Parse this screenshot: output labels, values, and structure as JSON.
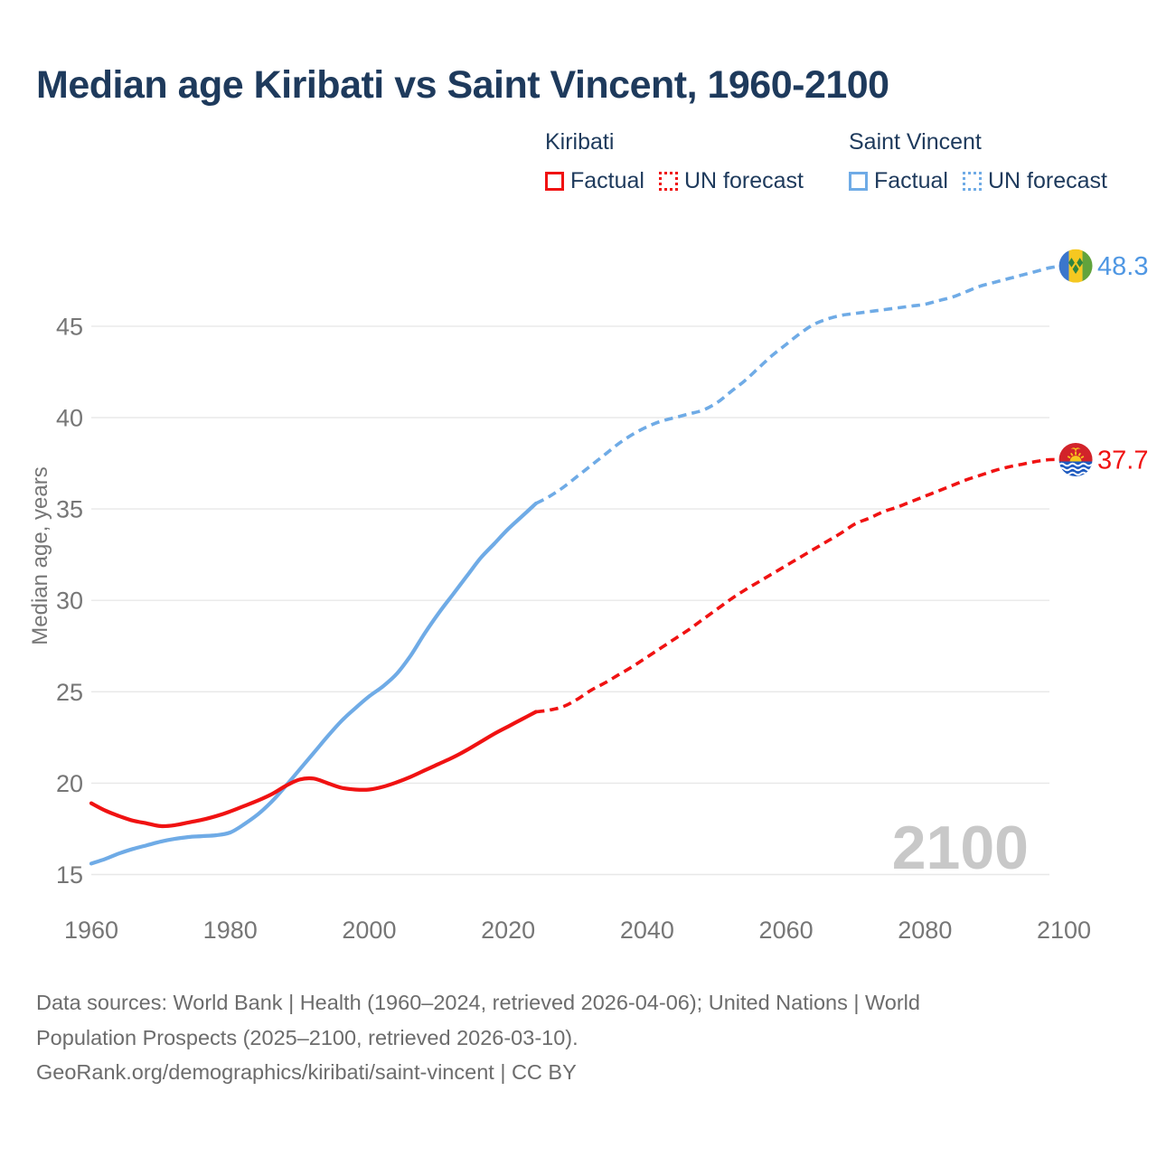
{
  "title": {
    "text": "Median age Kiribati vs Saint Vincent, 1960-2100"
  },
  "legend": {
    "groups": [
      {
        "name": "Kiribati",
        "color": "#f01212",
        "items": [
          {
            "label": "Factual",
            "style": "solid"
          },
          {
            "label": "UN forecast",
            "style": "dotted"
          }
        ]
      },
      {
        "name": "Saint Vincent",
        "color": "#6fabe6",
        "items": [
          {
            "label": "Factual",
            "style": "solid"
          },
          {
            "label": "UN forecast",
            "style": "dotted"
          }
        ]
      }
    ]
  },
  "watermark": {
    "text": "2100",
    "color": "#c8c8c8"
  },
  "footer": {
    "lines": [
      "Data sources: World Bank | Health (1960–2024, retrieved 2026-04-06); United Nations | World",
      "Population Prospects (2025–2100, retrieved 2026-03-10).",
      "GeoRank.org/demographics/kiribati/saint-vincent | CC BY"
    ]
  },
  "colors": {
    "title_navy": "#1e3a5c",
    "axis_text": "#767676",
    "grid": "#e8e8e8",
    "kiribati_red": "#f01212",
    "saint_vincent_blue": "#6fabe6",
    "end_label_blue": "#4f97e3",
    "end_label_red": "#f01212",
    "watermark_gray": "#c8c8c8"
  },
  "chart_data": {
    "type": "line",
    "title": "Median age Kiribati vs Saint Vincent, 1960-2100",
    "xlabel": "",
    "ylabel": "Median age, years",
    "xlim": [
      1960,
      2100
    ],
    "ylim": [
      13.5,
      49.5
    ],
    "x_ticks": [
      1960,
      1980,
      2000,
      2020,
      2040,
      2060,
      2080,
      2100
    ],
    "y_ticks": [
      15,
      20,
      25,
      30,
      35,
      40,
      45
    ],
    "grid": "horizontal",
    "legend_position": "top",
    "series": [
      {
        "key": "saint-vincent-factual",
        "name": "Saint Vincent — Factual",
        "color": "#6fabe6",
        "dash": false,
        "points": [
          [
            1960,
            15.6
          ],
          [
            1962,
            15.85
          ],
          [
            1964,
            16.15
          ],
          [
            1966,
            16.4
          ],
          [
            1968,
            16.6
          ],
          [
            1970,
            16.8
          ],
          [
            1972,
            16.95
          ],
          [
            1974,
            17.05
          ],
          [
            1976,
            17.1
          ],
          [
            1978,
            17.15
          ],
          [
            1980,
            17.3
          ],
          [
            1982,
            17.75
          ],
          [
            1984,
            18.3
          ],
          [
            1986,
            19.0
          ],
          [
            1988,
            19.85
          ],
          [
            1990,
            20.75
          ],
          [
            1992,
            21.65
          ],
          [
            1994,
            22.55
          ],
          [
            1996,
            23.4
          ],
          [
            1998,
            24.1
          ],
          [
            2000,
            24.75
          ],
          [
            2002,
            25.3
          ],
          [
            2004,
            26.0
          ],
          [
            2006,
            27.0
          ],
          [
            2008,
            28.2
          ],
          [
            2010,
            29.3
          ],
          [
            2012,
            30.3
          ],
          [
            2014,
            31.3
          ],
          [
            2016,
            32.3
          ],
          [
            2018,
            33.1
          ],
          [
            2020,
            33.9
          ],
          [
            2022,
            34.6
          ],
          [
            2024,
            35.3
          ]
        ]
      },
      {
        "key": "saint-vincent-forecast",
        "name": "Saint Vincent — UN forecast",
        "color": "#6fabe6",
        "dash": true,
        "points": [
          [
            2024,
            35.3
          ],
          [
            2026,
            35.7
          ],
          [
            2028,
            36.2
          ],
          [
            2030,
            36.8
          ],
          [
            2032,
            37.4
          ],
          [
            2034,
            38.0
          ],
          [
            2036,
            38.6
          ],
          [
            2038,
            39.1
          ],
          [
            2040,
            39.5
          ],
          [
            2042,
            39.8
          ],
          [
            2044,
            40.0
          ],
          [
            2046,
            40.2
          ],
          [
            2048,
            40.4
          ],
          [
            2050,
            40.8
          ],
          [
            2052,
            41.4
          ],
          [
            2054,
            42.0
          ],
          [
            2056,
            42.7
          ],
          [
            2058,
            43.4
          ],
          [
            2060,
            44.0
          ],
          [
            2062,
            44.6
          ],
          [
            2064,
            45.1
          ],
          [
            2066,
            45.4
          ],
          [
            2068,
            45.6
          ],
          [
            2070,
            45.7
          ],
          [
            2072,
            45.8
          ],
          [
            2074,
            45.9
          ],
          [
            2076,
            46.0
          ],
          [
            2078,
            46.1
          ],
          [
            2080,
            46.2
          ],
          [
            2082,
            46.4
          ],
          [
            2084,
            46.6
          ],
          [
            2086,
            46.9
          ],
          [
            2088,
            47.2
          ],
          [
            2090,
            47.4
          ],
          [
            2092,
            47.6
          ],
          [
            2094,
            47.8
          ],
          [
            2096,
            48.0
          ],
          [
            2098,
            48.2
          ],
          [
            2100,
            48.3
          ]
        ]
      },
      {
        "key": "kiribati-factual",
        "name": "Kiribati — Factual",
        "color": "#f01212",
        "dash": false,
        "points": [
          [
            1960,
            18.9
          ],
          [
            1962,
            18.5
          ],
          [
            1964,
            18.2
          ],
          [
            1966,
            17.95
          ],
          [
            1968,
            17.8
          ],
          [
            1970,
            17.65
          ],
          [
            1972,
            17.7
          ],
          [
            1974,
            17.85
          ],
          [
            1976,
            18.0
          ],
          [
            1978,
            18.2
          ],
          [
            1980,
            18.45
          ],
          [
            1982,
            18.75
          ],
          [
            1984,
            19.05
          ],
          [
            1986,
            19.4
          ],
          [
            1988,
            19.85
          ],
          [
            1990,
            20.2
          ],
          [
            1992,
            20.25
          ],
          [
            1994,
            20.0
          ],
          [
            1996,
            19.75
          ],
          [
            1998,
            19.65
          ],
          [
            2000,
            19.65
          ],
          [
            2002,
            19.8
          ],
          [
            2004,
            20.05
          ],
          [
            2006,
            20.35
          ],
          [
            2008,
            20.7
          ],
          [
            2010,
            21.05
          ],
          [
            2012,
            21.4
          ],
          [
            2014,
            21.8
          ],
          [
            2016,
            22.25
          ],
          [
            2018,
            22.7
          ],
          [
            2020,
            23.1
          ],
          [
            2022,
            23.5
          ],
          [
            2024,
            23.9
          ]
        ]
      },
      {
        "key": "kiribati-forecast",
        "name": "Kiribati — UN forecast",
        "color": "#f01212",
        "dash": true,
        "points": [
          [
            2024,
            23.9
          ],
          [
            2026,
            24.0
          ],
          [
            2028,
            24.2
          ],
          [
            2030,
            24.6
          ],
          [
            2032,
            25.1
          ],
          [
            2034,
            25.5
          ],
          [
            2036,
            25.95
          ],
          [
            2038,
            26.4
          ],
          [
            2040,
            26.9
          ],
          [
            2042,
            27.4
          ],
          [
            2044,
            27.9
          ],
          [
            2046,
            28.4
          ],
          [
            2048,
            28.95
          ],
          [
            2050,
            29.5
          ],
          [
            2052,
            30.05
          ],
          [
            2054,
            30.55
          ],
          [
            2056,
            31.0
          ],
          [
            2058,
            31.45
          ],
          [
            2060,
            31.9
          ],
          [
            2062,
            32.35
          ],
          [
            2064,
            32.8
          ],
          [
            2066,
            33.25
          ],
          [
            2068,
            33.7
          ],
          [
            2070,
            34.2
          ],
          [
            2072,
            34.5
          ],
          [
            2074,
            34.85
          ],
          [
            2076,
            35.1
          ],
          [
            2078,
            35.4
          ],
          [
            2080,
            35.7
          ],
          [
            2082,
            36.0
          ],
          [
            2084,
            36.3
          ],
          [
            2086,
            36.6
          ],
          [
            2088,
            36.85
          ],
          [
            2090,
            37.1
          ],
          [
            2092,
            37.3
          ],
          [
            2094,
            37.45
          ],
          [
            2096,
            37.6
          ],
          [
            2098,
            37.7
          ],
          [
            2100,
            37.7
          ]
        ]
      }
    ],
    "end_labels": [
      {
        "text": "48.3",
        "year": 2100,
        "value": 48.3,
        "series": "Saint Vincent",
        "flag": "saint-vincent",
        "color": "#4f97e3"
      },
      {
        "text": "37.7",
        "year": 2100,
        "value": 37.7,
        "series": "Kiribati",
        "flag": "kiribati",
        "color": "#f01212"
      }
    ]
  }
}
